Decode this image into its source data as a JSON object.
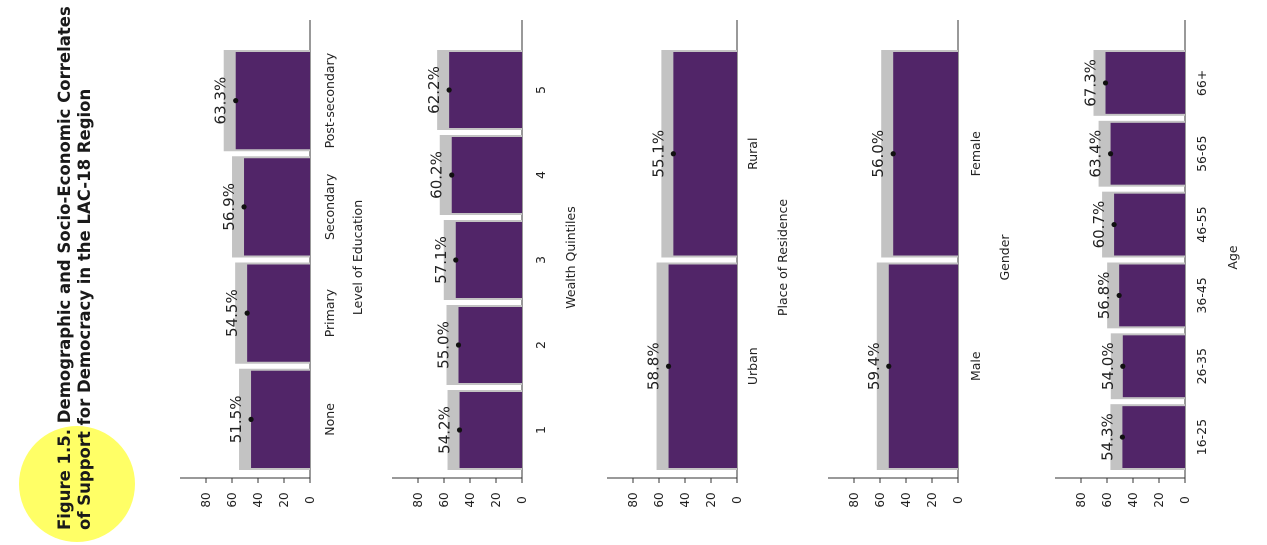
{
  "figure": {
    "label": "Figure 1.5",
    "title_line1": ". Demographic and Socio-Economic Correlates",
    "title_line2": "of Support for Democracy in the LAC-18 Region"
  },
  "colors": {
    "bar": "#512568",
    "bar_shadow": "#c3c3c3",
    "circle": "#ffff66",
    "point": "#111111",
    "axis": "#333333"
  },
  "chart_data": [
    {
      "type": "bar",
      "axis_title": "Level of Education",
      "categories": [
        "None",
        "Primary",
        "Secondary",
        "Post-secondary"
      ],
      "values": [
        51.5,
        54.5,
        56.9,
        63.3
      ],
      "labels": [
        "51.5%",
        "54.5%",
        "56.9%",
        "63.3%"
      ],
      "ylim": [
        0,
        100
      ],
      "ticks": [
        "0",
        "20",
        "40",
        "60",
        "80"
      ]
    },
    {
      "type": "bar",
      "axis_title": "Wealth Quintiles",
      "categories": [
        "1",
        "2",
        "3",
        "4",
        "5"
      ],
      "values": [
        54.2,
        55.0,
        57.1,
        60.2,
        62.2
      ],
      "labels": [
        "54.2%",
        "55.0%",
        "57.1%",
        "60.2%",
        "62.2%"
      ],
      "ylim": [
        0,
        100
      ],
      "ticks": [
        "0",
        "20",
        "40",
        "60",
        "80"
      ]
    },
    {
      "type": "bar",
      "axis_title": "Place of Residence",
      "categories": [
        "Urban",
        "Rural"
      ],
      "values": [
        58.8,
        55.1
      ],
      "labels": [
        "58.8%",
        "55.1%"
      ],
      "ylim": [
        0,
        100
      ],
      "ticks": [
        "0",
        "20",
        "40",
        "60",
        "80"
      ]
    },
    {
      "type": "bar",
      "axis_title": "Gender",
      "categories": [
        "Male",
        "Female"
      ],
      "values": [
        59.4,
        56.0
      ],
      "labels": [
        "59.4%",
        "56.0%"
      ],
      "ylim": [
        0,
        100
      ],
      "ticks": [
        "0",
        "20",
        "40",
        "60",
        "80"
      ]
    },
    {
      "type": "bar",
      "axis_title": "Age",
      "categories": [
        "16-25",
        "26-35",
        "36-45",
        "46-55",
        "56-65",
        "66+"
      ],
      "values": [
        54.3,
        54.0,
        56.8,
        60.7,
        63.4,
        67.3
      ],
      "labels": [
        "54.3%",
        "54.0%",
        "56.8%",
        "60.7%",
        "63.4%",
        "67.3%"
      ],
      "ylim": [
        0,
        100
      ],
      "ticks": [
        "0",
        "20",
        "40",
        "60",
        "80"
      ]
    }
  ]
}
